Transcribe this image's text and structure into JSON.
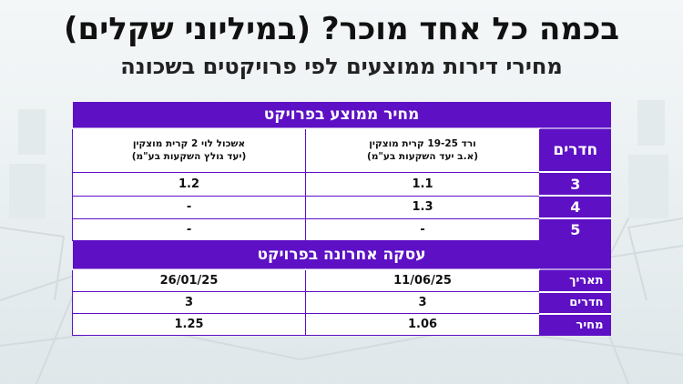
{
  "title": "בכמה כל אחד מוכר? (במיליוני שקלים)",
  "subtitle": "מחירי דירות ממוצעים לפי פרויקטים בשכונה",
  "table": {
    "section1_title": "מחיר ממוצע בפרויקט",
    "rooms_header": "חדרים",
    "project1_line1": "ורד 19-25 קרית מוצקין",
    "project1_line2": "(א.ב יעד השקעות בע\"מ)",
    "project2_line1": "אשכול לוי 2 קרית מוצקין",
    "project2_line2": "(יעד גולץ השקעות בע\"מ)",
    "avg_rows": [
      {
        "rooms": "3",
        "p1": "1.1",
        "p2": "1.2"
      },
      {
        "rooms": "4",
        "p1": "1.3",
        "p2": "-"
      },
      {
        "rooms": "5",
        "p1": "-",
        "p2": "-"
      }
    ],
    "section2_title": "עסקה אחרונה בפרויקט",
    "last_rows": [
      {
        "label": "תאריך",
        "p1": "11/06/25",
        "p2": "26/01/25"
      },
      {
        "label": "חדרים",
        "p1": "3",
        "p2": "3"
      },
      {
        "label": "מחיר",
        "p1": "1.06",
        "p2": "1.25"
      }
    ]
  },
  "colors": {
    "accent": "#5d10c4"
  }
}
